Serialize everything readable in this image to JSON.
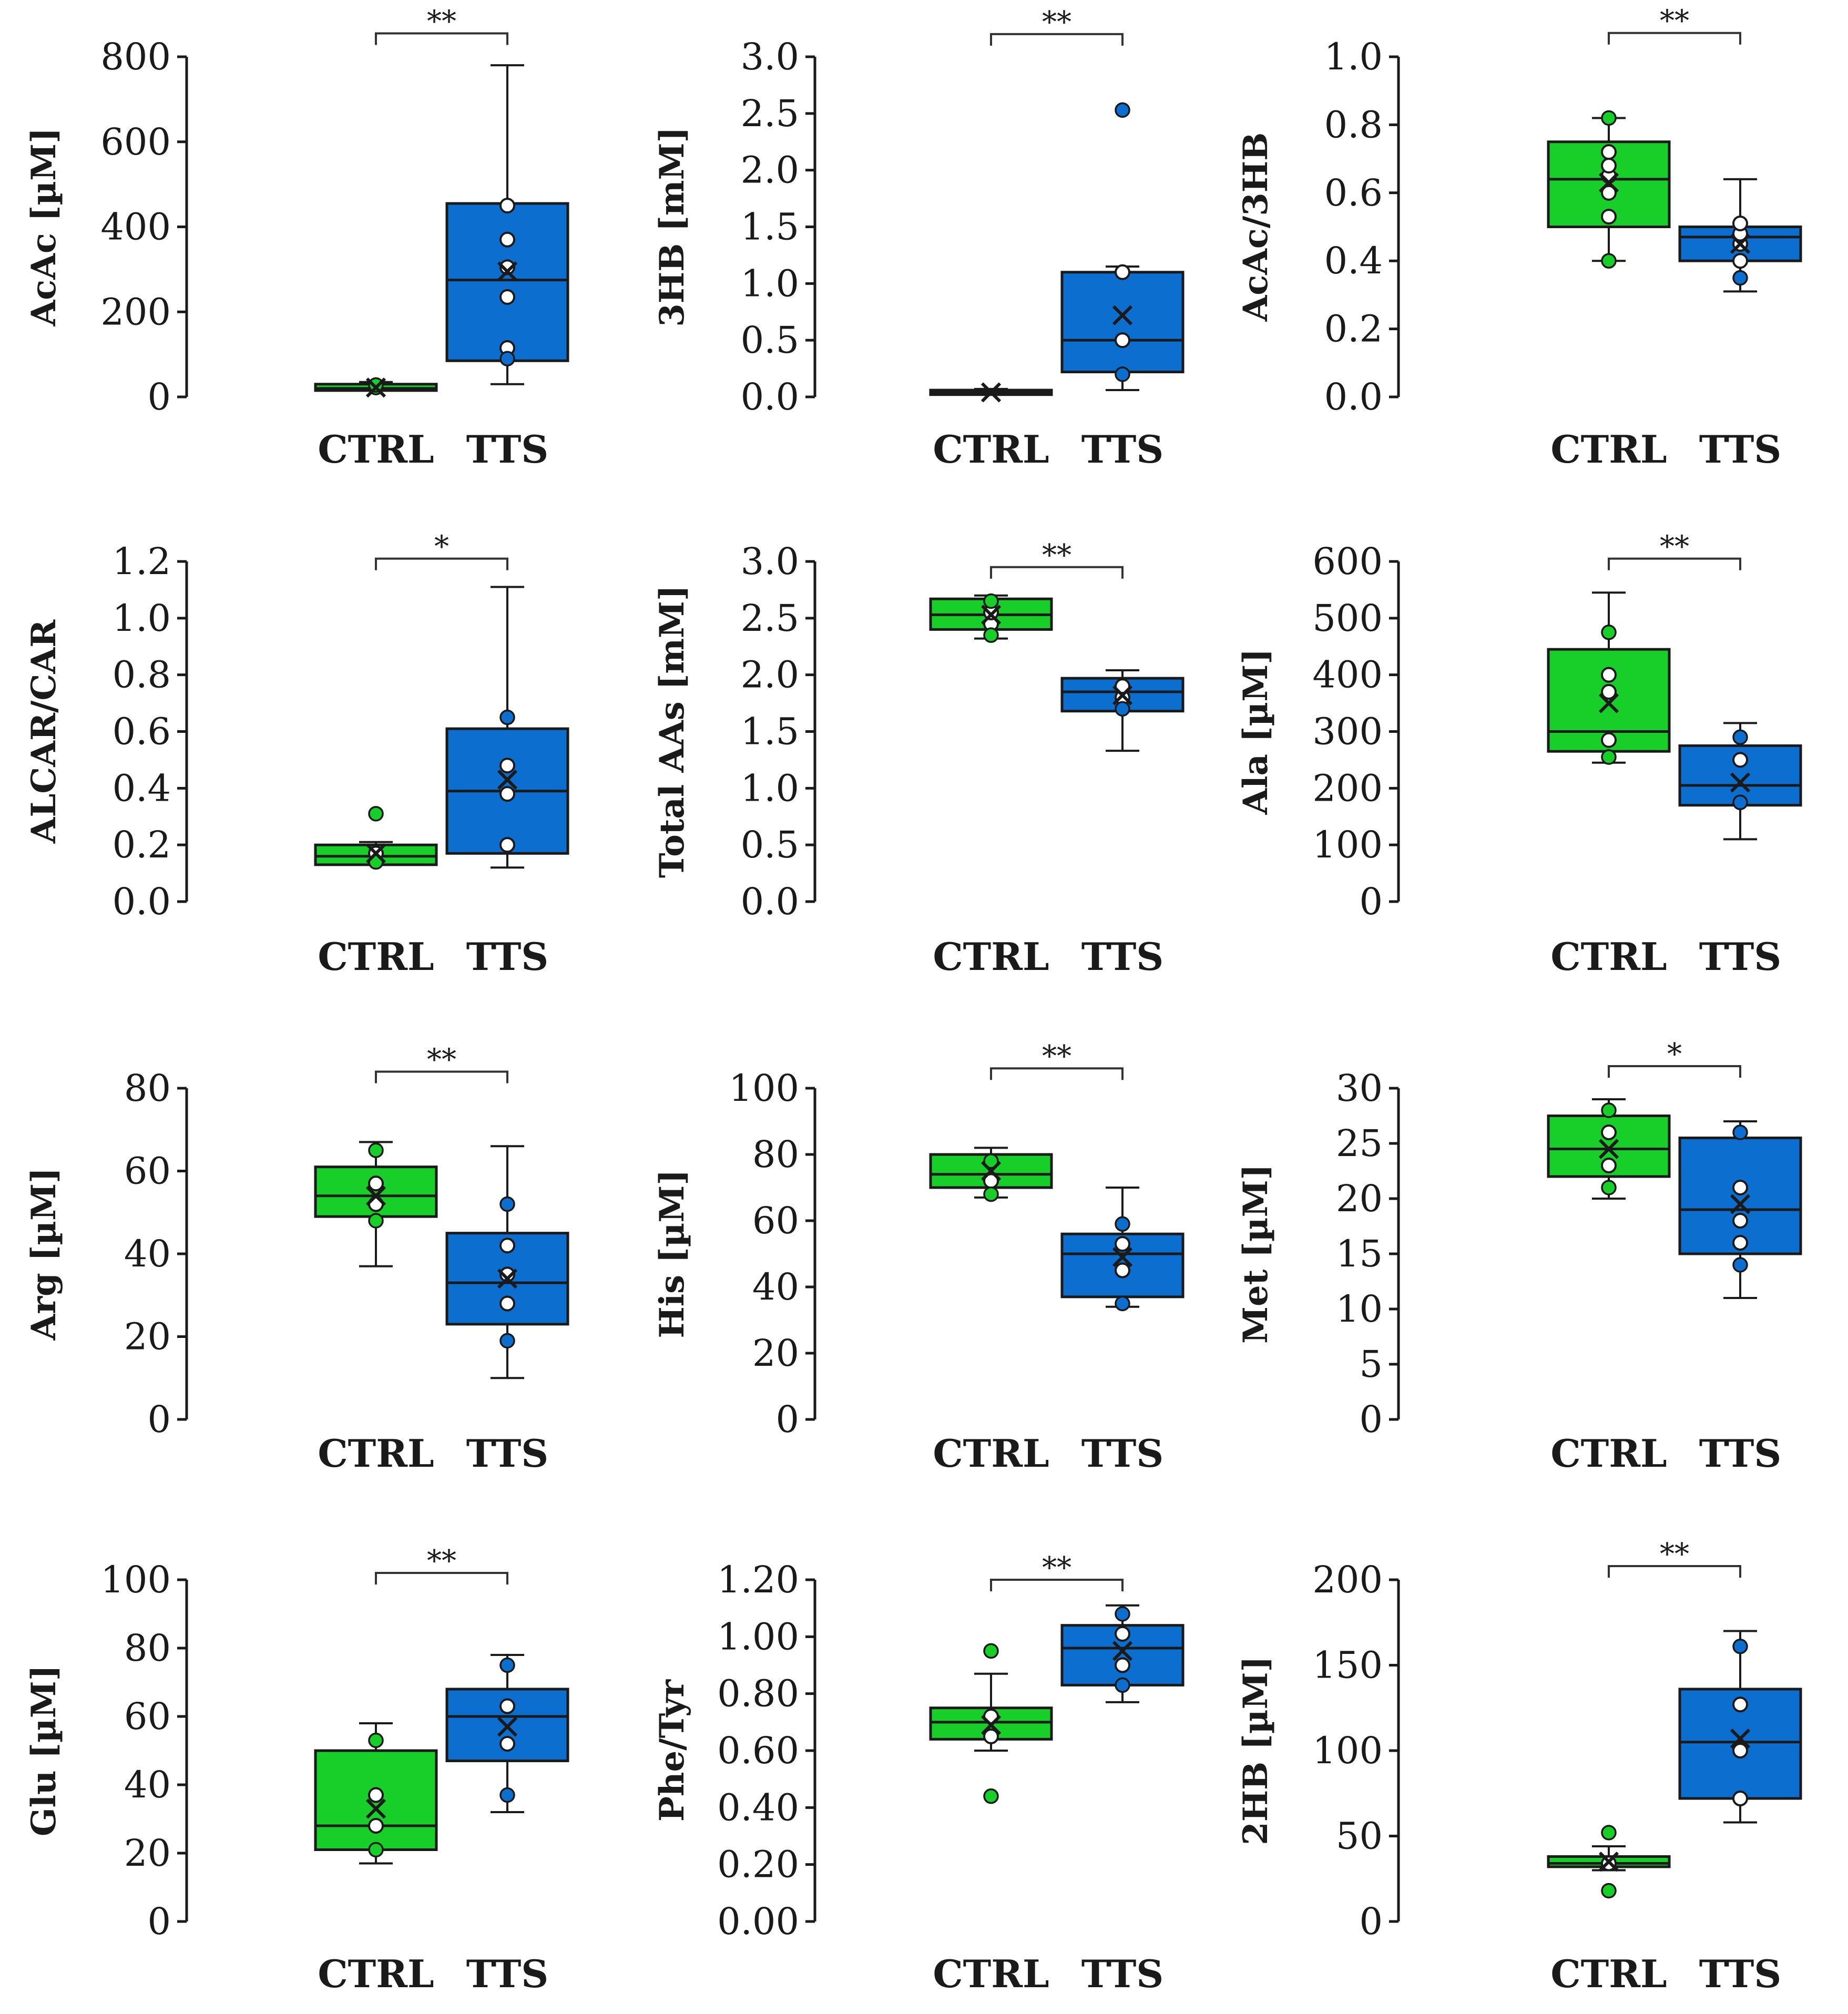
{
  "colors": {
    "ctrl": "#18cf2a",
    "tts": "#0c6fd0",
    "open_point": "#ffffff",
    "ink": "#1a1a1a"
  },
  "chart_data": [
    {
      "type": "box",
      "ylabel": "AcAc [µM]",
      "ylim": [
        0,
        800
      ],
      "yticks": [
        0,
        200,
        400,
        600,
        800
      ],
      "ytick_labels": [
        "0",
        "200",
        "400",
        "600",
        "800"
      ],
      "categories": [
        "CTRL",
        "TTS"
      ],
      "significance": "**",
      "bracket_y": 855,
      "groups": [
        {
          "name": "CTRL",
          "color": "#18cf2a",
          "min": 15,
          "q1": 15,
          "median": 20,
          "q3": 30,
          "max": 35,
          "mean": 22,
          "points_filled": [
            22,
            28
          ],
          "points_open": []
        },
        {
          "name": "TTS",
          "color": "#0c6fd0",
          "min": 30,
          "q1": 85,
          "median": 275,
          "q3": 455,
          "max": 780,
          "mean": 295,
          "points_filled": [
            90
          ],
          "points_open": [
            115,
            235,
            305,
            370,
            450
          ]
        }
      ]
    },
    {
      "type": "box",
      "ylabel": "3HB [mM]",
      "ylim": [
        0,
        3
      ],
      "yticks": [
        0,
        0.5,
        1,
        1.5,
        2,
        2.5,
        3
      ],
      "ytick_labels": [
        "0.0",
        "0.5",
        "1.0",
        "1.5",
        "2.0",
        "2.5",
        "3.0"
      ],
      "categories": [
        "CTRL",
        "TTS"
      ],
      "significance": "**",
      "bracket_y": 3.2,
      "groups": [
        {
          "name": "CTRL",
          "color": "#18cf2a",
          "min": 0.02,
          "q1": 0.02,
          "median": 0.04,
          "q3": 0.06,
          "max": 0.07,
          "mean": 0.04,
          "points_filled": [],
          "points_open": []
        },
        {
          "name": "TTS",
          "color": "#0c6fd0",
          "min": 0.06,
          "q1": 0.22,
          "median": 0.5,
          "q3": 1.1,
          "max": 1.15,
          "mean": 0.72,
          "points_filled": [
            0.2,
            2.53
          ],
          "points_open": [
            0.5,
            1.1
          ]
        }
      ]
    },
    {
      "type": "box",
      "ylabel": "AcAc/3HB",
      "ylim": [
        0,
        1
      ],
      "yticks": [
        0,
        0.2,
        0.4,
        0.6,
        0.8,
        1
      ],
      "ytick_labels": [
        "0.0",
        "0.2",
        "0.4",
        "0.6",
        "0.8",
        "1.0"
      ],
      "categories": [
        "CTRL",
        "TTS"
      ],
      "significance": "**",
      "bracket_y": 1.07,
      "groups": [
        {
          "name": "CTRL",
          "color": "#18cf2a",
          "min": 0.4,
          "q1": 0.5,
          "median": 0.64,
          "q3": 0.75,
          "max": 0.82,
          "mean": 0.63,
          "points_filled": [
            0.4,
            0.82
          ],
          "points_open": [
            0.53,
            0.6,
            0.65,
            0.68,
            0.72
          ]
        },
        {
          "name": "TTS",
          "color": "#0c6fd0",
          "min": 0.31,
          "q1": 0.4,
          "median": 0.47,
          "q3": 0.5,
          "max": 0.64,
          "mean": 0.45,
          "points_filled": [
            0.35
          ],
          "points_open": [
            0.4,
            0.45,
            0.48,
            0.51
          ]
        }
      ]
    },
    {
      "type": "box",
      "ylabel": "ALCAR/CAR",
      "ylim": [
        0,
        1.2
      ],
      "yticks": [
        0,
        0.2,
        0.4,
        0.6,
        0.8,
        1,
        1.2
      ],
      "ytick_labels": [
        "0.0",
        "0.2",
        "0.4",
        "0.6",
        "0.8",
        "1.0",
        "1.2"
      ],
      "categories": [
        "CTRL",
        "TTS"
      ],
      "significance": "*",
      "bracket_y": 1.21,
      "groups": [
        {
          "name": "CTRL",
          "color": "#18cf2a",
          "min": 0.13,
          "q1": 0.13,
          "median": 0.16,
          "q3": 0.2,
          "max": 0.21,
          "mean": 0.17,
          "points_filled": [
            0.31,
            0.14
          ],
          "points_open": [
            0.17
          ]
        },
        {
          "name": "TTS",
          "color": "#0c6fd0",
          "min": 0.12,
          "q1": 0.17,
          "median": 0.39,
          "q3": 0.61,
          "max": 1.11,
          "mean": 0.43,
          "points_filled": [
            0.65
          ],
          "points_open": [
            0.2,
            0.38,
            0.48
          ]
        }
      ]
    },
    {
      "type": "box",
      "ylabel": "Total AAs [mM]",
      "ylim": [
        0,
        3
      ],
      "yticks": [
        0,
        0.5,
        1,
        1.5,
        2,
        2.5,
        3
      ],
      "ytick_labels": [
        "0.0",
        "0.5",
        "1.0",
        "1.5",
        "2.0",
        "2.5",
        "3.0"
      ],
      "categories": [
        "CTRL",
        "TTS"
      ],
      "significance": "**",
      "bracket_y": 2.95,
      "groups": [
        {
          "name": "CTRL",
          "color": "#18cf2a",
          "min": 2.32,
          "q1": 2.4,
          "median": 2.53,
          "q3": 2.67,
          "max": 2.7,
          "mean": 2.53,
          "points_filled": [
            2.35,
            2.65
          ],
          "points_open": [
            2.45,
            2.55
          ]
        },
        {
          "name": "TTS",
          "color": "#0c6fd0",
          "min": 1.33,
          "q1": 1.68,
          "median": 1.85,
          "q3": 1.97,
          "max": 2.04,
          "mean": 1.82,
          "points_filled": [
            1.7
          ],
          "points_open": [
            1.8,
            1.9
          ]
        }
      ]
    },
    {
      "type": "box",
      "ylabel": "Ala [µM]",
      "ylim": [
        0,
        600
      ],
      "yticks": [
        0,
        100,
        200,
        300,
        400,
        500,
        600
      ],
      "ytick_labels": [
        "0",
        "100",
        "200",
        "300",
        "400",
        "500",
        "600"
      ],
      "categories": [
        "CTRL",
        "TTS"
      ],
      "significance": "**",
      "bracket_y": 605,
      "groups": [
        {
          "name": "CTRL",
          "color": "#18cf2a",
          "min": 245,
          "q1": 265,
          "median": 300,
          "q3": 445,
          "max": 545,
          "mean": 350,
          "points_filled": [
            475,
            255
          ],
          "points_open": [
            285,
            370,
            400
          ]
        },
        {
          "name": "TTS",
          "color": "#0c6fd0",
          "min": 110,
          "q1": 170,
          "median": 205,
          "q3": 275,
          "max": 315,
          "mean": 210,
          "points_filled": [
            290,
            175
          ],
          "points_open": [
            250
          ]
        }
      ]
    },
    {
      "type": "box",
      "ylabel": "Arg [µM]",
      "ylim": [
        0,
        80
      ],
      "yticks": [
        0,
        20,
        40,
        60,
        80
      ],
      "ytick_labels": [
        "0",
        "20",
        "40",
        "60",
        "80"
      ],
      "categories": [
        "CTRL",
        "TTS"
      ],
      "significance": "**",
      "bracket_y": 84,
      "groups": [
        {
          "name": "CTRL",
          "color": "#18cf2a",
          "min": 37,
          "q1": 49,
          "median": 54,
          "q3": 61,
          "max": 67,
          "mean": 54,
          "points_filled": [
            65,
            48
          ],
          "points_open": [
            52,
            57
          ]
        },
        {
          "name": "TTS",
          "color": "#0c6fd0",
          "min": 10,
          "q1": 23,
          "median": 33,
          "q3": 45,
          "max": 66,
          "mean": 34,
          "points_filled": [
            52,
            19
          ],
          "points_open": [
            28,
            42,
            35
          ]
        }
      ]
    },
    {
      "type": "box",
      "ylabel": "His [µM]",
      "ylim": [
        0,
        100
      ],
      "yticks": [
        0,
        20,
        40,
        60,
        80,
        100
      ],
      "ytick_labels": [
        "0",
        "20",
        "40",
        "60",
        "80",
        "100"
      ],
      "categories": [
        "CTRL",
        "TTS"
      ],
      "significance": "**",
      "bracket_y": 106,
      "groups": [
        {
          "name": "CTRL",
          "color": "#18cf2a",
          "min": 67,
          "q1": 70,
          "median": 74,
          "q3": 80,
          "max": 82,
          "mean": 75,
          "points_filled": [
            68,
            78
          ],
          "points_open": [
            72
          ]
        },
        {
          "name": "TTS",
          "color": "#0c6fd0",
          "min": 34,
          "q1": 37,
          "median": 50,
          "q3": 56,
          "max": 70,
          "mean": 49,
          "points_filled": [
            59,
            35
          ],
          "points_open": [
            45,
            53
          ]
        }
      ]
    },
    {
      "type": "box",
      "ylabel": "Met [µM]",
      "ylim": [
        0,
        30
      ],
      "yticks": [
        0,
        5,
        10,
        15,
        20,
        25,
        30
      ],
      "ytick_labels": [
        "0",
        "5",
        "10",
        "15",
        "20",
        "25",
        "30"
      ],
      "categories": [
        "CTRL",
        "TTS"
      ],
      "significance": "*",
      "bracket_y": 32,
      "groups": [
        {
          "name": "CTRL",
          "color": "#18cf2a",
          "min": 20,
          "q1": 22,
          "median": 24.5,
          "q3": 27.5,
          "max": 29,
          "mean": 24.5,
          "points_filled": [
            28,
            21
          ],
          "points_open": [
            23,
            26
          ]
        },
        {
          "name": "TTS",
          "color": "#0c6fd0",
          "min": 11,
          "q1": 15,
          "median": 19,
          "q3": 25.5,
          "max": 27,
          "mean": 19.5,
          "points_filled": [
            26,
            14
          ],
          "points_open": [
            16,
            18,
            21
          ]
        }
      ]
    },
    {
      "type": "box",
      "ylabel": "Glu [µM]",
      "ylim": [
        0,
        100
      ],
      "yticks": [
        0,
        20,
        40,
        60,
        80,
        100
      ],
      "ytick_labels": [
        "0",
        "20",
        "40",
        "60",
        "80",
        "100"
      ],
      "categories": [
        "CTRL",
        "TTS"
      ],
      "significance": "**",
      "bracket_y": 102,
      "groups": [
        {
          "name": "CTRL",
          "color": "#18cf2a",
          "min": 17,
          "q1": 21,
          "median": 28,
          "q3": 50,
          "max": 58,
          "mean": 33,
          "points_filled": [
            53,
            21
          ],
          "points_open": [
            28,
            37
          ]
        },
        {
          "name": "TTS",
          "color": "#0c6fd0",
          "min": 32,
          "q1": 47,
          "median": 60,
          "q3": 68,
          "max": 78,
          "mean": 57,
          "points_filled": [
            75,
            37
          ],
          "points_open": [
            52,
            63
          ]
        }
      ]
    },
    {
      "type": "box",
      "ylabel": "Phe/Tyr",
      "ylim": [
        0,
        1.2
      ],
      "yticks": [
        0,
        0.2,
        0.4,
        0.6,
        0.8,
        1,
        1.2
      ],
      "ytick_labels": [
        "0.00",
        "0.20",
        "0.40",
        "0.60",
        "0.80",
        "1.00",
        "1.20"
      ],
      "categories": [
        "CTRL",
        "TTS"
      ],
      "significance": "**",
      "bracket_y": 1.2,
      "groups": [
        {
          "name": "CTRL",
          "color": "#18cf2a",
          "min": 0.6,
          "q1": 0.64,
          "median": 0.7,
          "q3": 0.75,
          "max": 0.87,
          "mean": 0.69,
          "points_filled": [
            0.95,
            0.44
          ],
          "points_open": [
            0.65,
            0.72
          ]
        },
        {
          "name": "TTS",
          "color": "#0c6fd0",
          "min": 0.77,
          "q1": 0.83,
          "median": 0.96,
          "q3": 1.04,
          "max": 1.11,
          "mean": 0.95,
          "points_filled": [
            1.08,
            0.83
          ],
          "points_open": [
            0.9,
            1.01
          ]
        }
      ]
    },
    {
      "type": "box",
      "ylabel": "2HB [µM]",
      "ylim": [
        0,
        200
      ],
      "yticks": [
        0,
        50,
        100,
        150,
        200
      ],
      "ytick_labels": [
        "0",
        "50",
        "100",
        "150",
        "200"
      ],
      "categories": [
        "CTRL",
        "TTS"
      ],
      "significance": "**",
      "bracket_y": 208,
      "groups": [
        {
          "name": "CTRL",
          "color": "#18cf2a",
          "min": 30,
          "q1": 32,
          "median": 34,
          "q3": 38,
          "max": 44,
          "mean": 35,
          "points_filled": [
            52,
            18
          ],
          "points_open": [
            34
          ]
        },
        {
          "name": "TTS",
          "color": "#0c6fd0",
          "min": 58,
          "q1": 72,
          "median": 105,
          "q3": 136,
          "max": 170,
          "mean": 107,
          "points_filled": [
            161
          ],
          "points_open": [
            72,
            100,
            127
          ]
        }
      ]
    }
  ]
}
